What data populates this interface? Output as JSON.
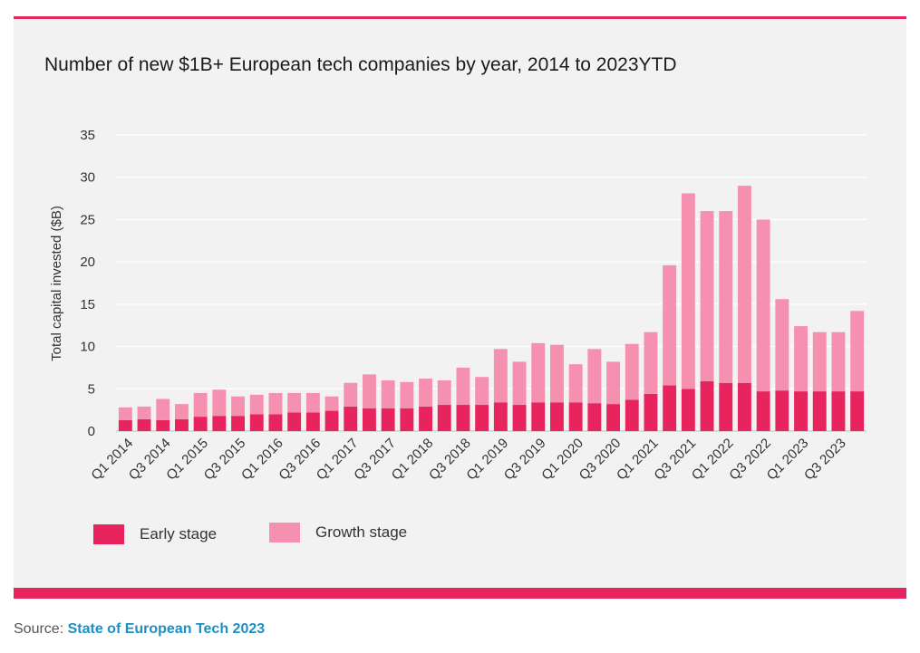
{
  "source": {
    "prefix": "Source: ",
    "link": "State of European Tech 2023"
  },
  "legend": {
    "early_label": "Early stage",
    "growth_label": "Growth stage"
  },
  "colors": {
    "accent": "#e8245f",
    "early": "#e8245f",
    "growth": "#f590b0",
    "panel": "#f2f2f2",
    "link": "#1d8fc4"
  },
  "chart_data": {
    "type": "bar",
    "stacked": true,
    "title": "Number of new $1B+ European tech companies by year, 2014 to 2023YTD",
    "xlabel": "",
    "ylabel": "Total capital invested ($B)",
    "ylim": [
      0,
      35
    ],
    "yticks": [
      0,
      5,
      10,
      15,
      20,
      25,
      30,
      35
    ],
    "grid": true,
    "legend_position": "bottom-left",
    "categories": [
      "Q1 2014",
      "Q2 2014",
      "Q3 2014",
      "Q4 2014",
      "Q1 2015",
      "Q2 2015",
      "Q3 2015",
      "Q4 2015",
      "Q1 2016",
      "Q2 2016",
      "Q3 2016",
      "Q4 2016",
      "Q1 2017",
      "Q2 2017",
      "Q3 2017",
      "Q4 2017",
      "Q1 2018",
      "Q2 2018",
      "Q3 2018",
      "Q4 2018",
      "Q1 2019",
      "Q2 2019",
      "Q3 2019",
      "Q4 2019",
      "Q1 2020",
      "Q2 2020",
      "Q3 2020",
      "Q4 2020",
      "Q1 2021",
      "Q2 2021",
      "Q3 2021",
      "Q4 2021",
      "Q1 2022",
      "Q2 2022",
      "Q3 2022",
      "Q4 2022",
      "Q1 2023",
      "Q2 2023",
      "Q3 2023",
      "Q4 2023"
    ],
    "tick_labels": [
      "Q1 2014",
      "Q3 2014",
      "Q1 2015",
      "Q3 2015",
      "Q1 2016",
      "Q3 2016",
      "Q1 2017",
      "Q3 2017",
      "Q1 2018",
      "Q3 2018",
      "Q1 2019",
      "Q3 2019",
      "Q1 2020",
      "Q3 2020",
      "Q1 2021",
      "Q3 2021",
      "Q1 2022",
      "Q3 2022",
      "Q1 2023",
      "Q3 2023"
    ],
    "series": [
      {
        "name": "Early stage",
        "values": [
          1.3,
          1.4,
          1.3,
          1.4,
          1.7,
          1.8,
          1.8,
          2.0,
          2.0,
          2.2,
          2.2,
          2.4,
          2.9,
          2.7,
          2.7,
          2.7,
          2.9,
          3.1,
          3.1,
          3.1,
          3.4,
          3.1,
          3.4,
          3.4,
          3.4,
          3.3,
          3.2,
          3.7,
          4.4,
          5.4,
          5.0,
          5.9,
          5.7,
          5.7,
          4.7,
          4.8,
          4.7,
          4.7,
          4.7,
          4.7
        ]
      },
      {
        "name": "Growth stage",
        "values": [
          1.5,
          1.5,
          2.5,
          1.8,
          2.8,
          3.1,
          2.3,
          2.3,
          2.5,
          2.3,
          2.3,
          1.7,
          2.8,
          4.0,
          3.3,
          3.1,
          3.3,
          2.9,
          4.4,
          3.3,
          6.3,
          5.1,
          7.0,
          6.8,
          4.5,
          6.4,
          5.0,
          6.6,
          7.3,
          14.2,
          23.1,
          20.1,
          20.3,
          23.3,
          20.3,
          10.8,
          7.7,
          7.0,
          7.0,
          9.5
        ]
      }
    ]
  }
}
